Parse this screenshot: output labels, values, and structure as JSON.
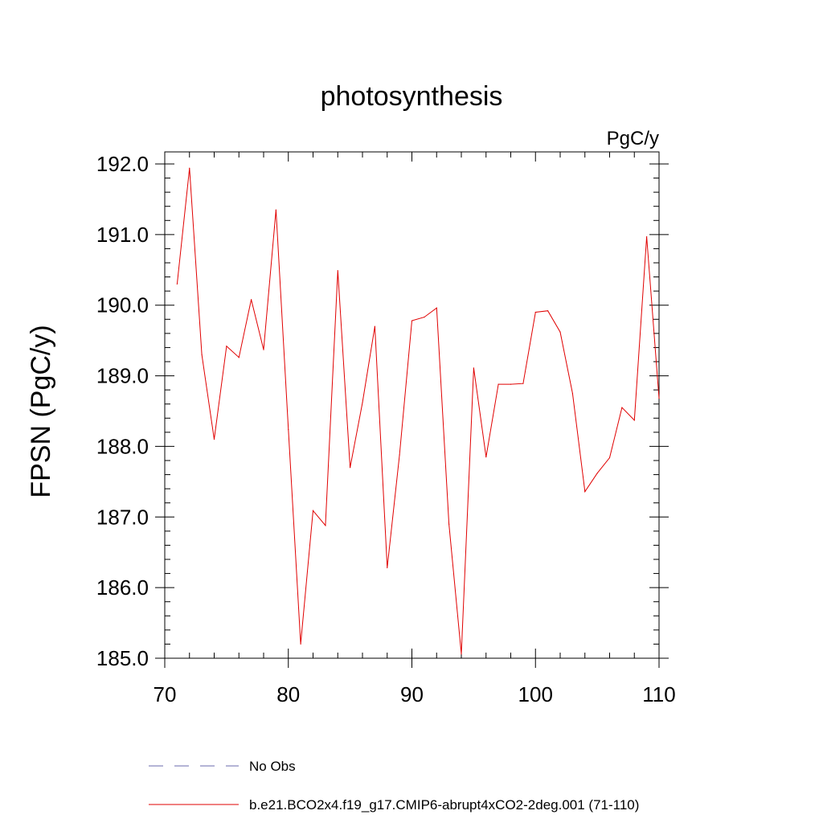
{
  "chart_data": {
    "type": "line",
    "title": "photosynthesis",
    "units_label": "PgC/y",
    "ylabel": "FPSN  (PgC/y)",
    "xlabel": "",
    "xlim": [
      70,
      110
    ],
    "ylim": [
      185.0,
      192.2
    ],
    "x_ticks": [
      70,
      80,
      90,
      100,
      110
    ],
    "x_tick_labels": [
      "70",
      "80",
      "90",
      "100",
      "110"
    ],
    "y_ticks": [
      185.0,
      186.0,
      187.0,
      188.0,
      189.0,
      190.0,
      191.0,
      192.0
    ],
    "y_tick_labels": [
      "185.0",
      "186.0",
      "187.0",
      "188.0",
      "189.0",
      "190.0",
      "191.0",
      "192.0"
    ],
    "grid": false,
    "legend_position": "bottom",
    "series": [
      {
        "name": "b.e21.BCO2x4.f19_g17.CMIP6-abrupt4xCO2-2deg.001 (71-110)",
        "color": "#e00000",
        "dash": "solid",
        "x": [
          71,
          72,
          73,
          74,
          75,
          76,
          77,
          78,
          79,
          80,
          81,
          82,
          83,
          84,
          85,
          86,
          87,
          88,
          89,
          90,
          91,
          92,
          93,
          94,
          95,
          96,
          97,
          98,
          99,
          100,
          101,
          102,
          103,
          104,
          105,
          106,
          107,
          108,
          109,
          110
        ],
        "values": [
          190.3,
          191.94,
          189.3,
          188.1,
          189.42,
          189.26,
          190.08,
          189.37,
          191.35,
          188.24,
          185.2,
          187.09,
          186.88,
          190.49,
          187.7,
          188.62,
          189.7,
          186.28,
          187.88,
          189.78,
          189.83,
          189.96,
          186.9,
          185.06,
          189.11,
          187.85,
          188.88,
          188.88,
          188.89,
          189.9,
          189.92,
          189.62,
          188.75,
          187.36,
          187.62,
          187.84,
          188.55,
          188.37,
          190.97,
          188.68
        ]
      }
    ],
    "legend": [
      {
        "label": "No Obs",
        "color": "#6a6aae",
        "dash": "dashed"
      },
      {
        "label": "b.e21.BCO2x4.f19_g17.CMIP6-abrupt4xCO2-2deg.001 (71-110)",
        "color": "#e00000",
        "dash": "solid"
      }
    ]
  }
}
